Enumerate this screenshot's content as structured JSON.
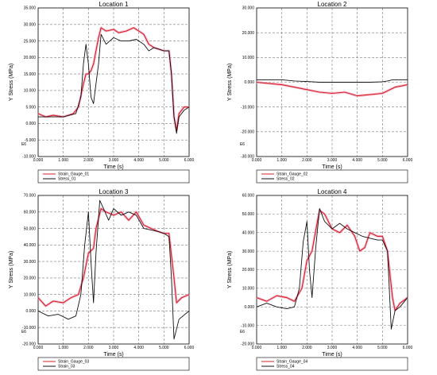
{
  "chart_data": [
    {
      "type": "line",
      "title": "Location 1",
      "xlabel": "Time (s)",
      "ylabel": "Y Stress (MPa)",
      "scale_note": "E6",
      "xlim": [
        0,
        6
      ],
      "ylim": [
        -10,
        35
      ],
      "xticks": [
        "0.000",
        "1.000",
        "2.000",
        "3.000",
        "4.000",
        "5.000",
        "6.000"
      ],
      "yticks": [
        [
          "-10.000",
          -10
        ],
        [
          "-5.000",
          -5
        ],
        [
          "0.000",
          0
        ],
        [
          "5.000",
          5
        ],
        [
          "10.000",
          10
        ],
        [
          "15.000",
          15
        ],
        [
          "20.000",
          20
        ],
        [
          "25.000",
          25
        ],
        [
          "30.000",
          30
        ],
        [
          "35.000",
          35
        ]
      ],
      "grid": true,
      "legend_position": "bottom",
      "series": [
        {
          "name": "Strain_Gauge_01",
          "color": "#d62020",
          "x": [
            0,
            0.3,
            0.6,
            1.0,
            1.4,
            1.6,
            1.8,
            1.9,
            2.0,
            2.1,
            2.2,
            2.3,
            2.4,
            2.5,
            2.7,
            3.0,
            3.2,
            3.5,
            3.8,
            4.0,
            4.2,
            4.4,
            4.6,
            4.8,
            5.0,
            5.2,
            5.3,
            5.4,
            5.5,
            5.6,
            5.8,
            6.0
          ],
          "y": [
            3,
            2,
            2.5,
            2,
            3,
            5,
            12,
            15,
            15,
            16,
            18,
            22,
            26,
            29,
            28,
            28.5,
            27.5,
            28,
            29,
            28,
            27,
            24,
            23,
            22.5,
            22,
            22,
            15,
            2,
            -2,
            3,
            5,
            5
          ]
        },
        {
          "name": "Stress_01",
          "color": "#111111",
          "x": [
            0,
            0.5,
            1.0,
            1.5,
            1.7,
            1.8,
            1.9,
            2.0,
            2.1,
            2.2,
            2.3,
            2.4,
            2.5,
            2.7,
            3.0,
            3.3,
            3.6,
            3.9,
            4.2,
            4.4,
            4.6,
            4.8,
            5.0,
            5.2,
            5.3,
            5.4,
            5.5,
            5.6,
            5.8,
            6.0
          ],
          "y": [
            2,
            2,
            2,
            3,
            8,
            18,
            24,
            18,
            8,
            6,
            12,
            18,
            27,
            24,
            26,
            25,
            25,
            25.5,
            24,
            22,
            23,
            22.5,
            22,
            22,
            15,
            2,
            -3,
            2,
            4,
            5
          ]
        }
      ]
    },
    {
      "type": "line",
      "title": "Location 2",
      "xlabel": "Time (s)",
      "ylabel": "Y Stress (MPa)",
      "scale_note": "E6",
      "xlim": [
        0,
        6
      ],
      "ylim": [
        -30,
        30
      ],
      "xticks": [
        "0.000",
        "1.000",
        "2.000",
        "3.000",
        "4.000",
        "5.000",
        "6.000"
      ],
      "yticks": [
        [
          "-30.000",
          -30
        ],
        [
          "-20.000",
          -20
        ],
        [
          "-10.000",
          -10
        ],
        [
          "0.000",
          0
        ],
        [
          "10.000",
          10
        ],
        [
          "20.000",
          20
        ],
        [
          "30.000",
          30
        ]
      ],
      "grid": true,
      "legend_position": "bottom",
      "series": [
        {
          "name": "Strain_Gauge_02",
          "color": "#d62020",
          "x": [
            0,
            0.5,
            1.0,
            1.5,
            2.0,
            2.5,
            3.0,
            3.5,
            4.0,
            4.5,
            5.0,
            5.5,
            6.0
          ],
          "y": [
            0,
            -0.5,
            -1,
            -2,
            -3,
            -4,
            -4.5,
            -4,
            -5.5,
            -5,
            -4.5,
            -2,
            -1
          ]
        },
        {
          "name": "Stress_02",
          "color": "#111111",
          "x": [
            0,
            0.5,
            1.0,
            1.5,
            2.0,
            2.5,
            3.0,
            3.5,
            4.0,
            4.5,
            5.0,
            5.2,
            5.4,
            6.0
          ],
          "y": [
            1,
            1,
            1,
            0.5,
            0.3,
            0,
            0,
            0,
            0,
            0,
            0.2,
            0.5,
            1,
            1
          ]
        }
      ]
    },
    {
      "type": "line",
      "title": "Location 3",
      "xlabel": "Time (s)",
      "ylabel": "Y Stress (MPa)",
      "scale_note": "E6",
      "xlim": [
        0,
        6
      ],
      "ylim": [
        -20,
        70
      ],
      "xticks": [
        "0.000",
        "1.000",
        "2.000",
        "3.000",
        "4.000",
        "5.000",
        "6.000"
      ],
      "yticks": [
        [
          "-20.000",
          -20
        ],
        [
          "-10.000",
          -10
        ],
        [
          "0.000",
          0
        ],
        [
          "10.000",
          10
        ],
        [
          "20.000",
          20
        ],
        [
          "30.000",
          30
        ],
        [
          "40.000",
          40
        ],
        [
          "50.000",
          50
        ],
        [
          "60.000",
          60
        ],
        [
          "70.000",
          70
        ]
      ],
      "grid": true,
      "legend_position": "bottom",
      "series": [
        {
          "name": "Strain_Gauge_03",
          "color": "#d62020",
          "x": [
            0,
            0.3,
            0.6,
            1.0,
            1.3,
            1.6,
            1.8,
            2.0,
            2.2,
            2.3,
            2.5,
            2.7,
            3.0,
            3.3,
            3.6,
            3.9,
            4.2,
            4.5,
            4.8,
            5.0,
            5.2,
            5.4,
            5.5,
            5.7,
            6.0
          ],
          "y": [
            8,
            3,
            6,
            5,
            8,
            10,
            20,
            35,
            38,
            50,
            62,
            60,
            58,
            60,
            55,
            60,
            52,
            50,
            48,
            47,
            47,
            20,
            5,
            8,
            10
          ]
        },
        {
          "name": "Strain_03",
          "color": "#111111",
          "x": [
            0,
            0.4,
            0.8,
            1.2,
            1.5,
            1.7,
            1.85,
            2.0,
            2.1,
            2.2,
            2.3,
            2.45,
            2.6,
            2.8,
            3.0,
            3.3,
            3.6,
            3.9,
            4.2,
            4.5,
            4.8,
            5.0,
            5.2,
            5.3,
            5.4,
            5.6,
            6.0
          ],
          "y": [
            0,
            -3,
            -2,
            -5,
            -3,
            10,
            40,
            60,
            30,
            5,
            35,
            67,
            62,
            55,
            62,
            58,
            60,
            58,
            50,
            49,
            48,
            47,
            45,
            20,
            -17,
            -5,
            0
          ]
        }
      ]
    },
    {
      "type": "line",
      "title": "Location 4",
      "xlabel": "Time (s)",
      "ylabel": "Y Stress (MPa)",
      "scale_note": "E6",
      "xlim": [
        0,
        6
      ],
      "ylim": [
        -20,
        60
      ],
      "xticks": [
        "0.000",
        "1.000",
        "2.000",
        "3.000",
        "4.000",
        "5.000",
        "6.000"
      ],
      "yticks": [
        [
          "-20.000",
          -20
        ],
        [
          "-10.000",
          -10
        ],
        [
          "0.000",
          0
        ],
        [
          "10.000",
          10
        ],
        [
          "20.000",
          20
        ],
        [
          "30.000",
          30
        ],
        [
          "40.000",
          40
        ],
        [
          "50.000",
          50
        ],
        [
          "60.000",
          60
        ]
      ],
      "grid": true,
      "legend_position": "bottom",
      "series": [
        {
          "name": "Strain_Gauge_04",
          "color": "#d62020",
          "x": [
            0,
            0.4,
            0.8,
            1.2,
            1.5,
            1.8,
            2.0,
            2.2,
            2.4,
            2.5,
            2.7,
            3.0,
            3.3,
            3.6,
            3.9,
            4.1,
            4.3,
            4.5,
            4.8,
            5.0,
            5.2,
            5.4,
            5.5,
            5.7,
            6.0
          ],
          "y": [
            5,
            3,
            6,
            5,
            3,
            10,
            25,
            30,
            45,
            52,
            50,
            42,
            40,
            44,
            38,
            30,
            32,
            40,
            38,
            38,
            30,
            5,
            -2,
            2,
            5
          ]
        },
        {
          "name": "Stress_04",
          "color": "#111111",
          "x": [
            0,
            0.4,
            0.8,
            1.2,
            1.5,
            1.7,
            1.85,
            2.0,
            2.1,
            2.2,
            2.35,
            2.5,
            2.7,
            3.0,
            3.3,
            3.6,
            3.9,
            4.2,
            4.5,
            4.8,
            5.0,
            5.2,
            5.35,
            5.5,
            5.7,
            6.0
          ],
          "y": [
            0,
            2,
            0,
            -1,
            0,
            10,
            35,
            46,
            20,
            5,
            32,
            53,
            46,
            42,
            45,
            42,
            40,
            38,
            37,
            36,
            36,
            30,
            -12,
            -2,
            0,
            5
          ]
        }
      ]
    }
  ]
}
